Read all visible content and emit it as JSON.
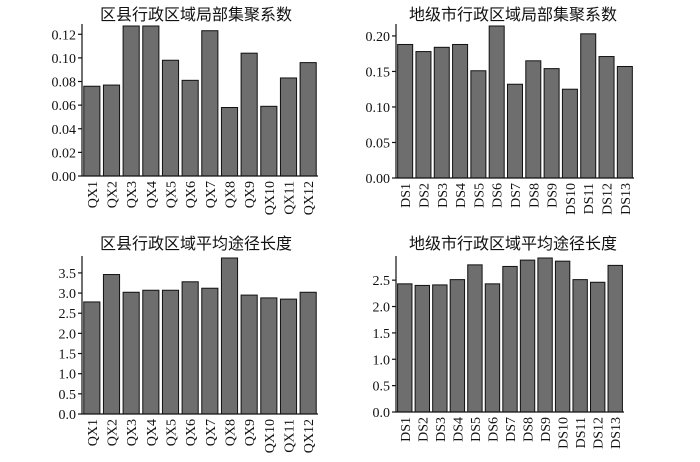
{
  "colors": {
    "bar": "#6e6e6e",
    "stroke": "#111111",
    "text": "#111111",
    "background": "#ffffff"
  },
  "chart_data": [
    {
      "type": "bar",
      "title": "区县行政区域局部集聚系数",
      "categories": [
        "QX1",
        "QX2",
        "QX3",
        "QX4",
        "QX5",
        "QX6",
        "QX7",
        "QX8",
        "QX9",
        "QX10",
        "QX11",
        "QX12"
      ],
      "values": [
        0.076,
        0.077,
        0.127,
        0.127,
        0.098,
        0.081,
        0.123,
        0.058,
        0.104,
        0.059,
        0.083,
        0.096
      ],
      "ylim": [
        0,
        0.127
      ],
      "yticks": [
        "0.00",
        "0.02",
        "0.04",
        "0.06",
        "0.08",
        "0.10",
        "0.12"
      ],
      "xlabel": "",
      "ylabel": ""
    },
    {
      "type": "bar",
      "title": "地级市行政区域局部集聚系数",
      "categories": [
        "DS1",
        "DS2",
        "DS3",
        "DS4",
        "DS5",
        "DS6",
        "DS7",
        "DS8",
        "DS9",
        "DS10",
        "DS11",
        "DS12",
        "DS13"
      ],
      "values": [
        0.188,
        0.178,
        0.184,
        0.188,
        0.151,
        0.214,
        0.132,
        0.165,
        0.154,
        0.125,
        0.203,
        0.171,
        0.157
      ],
      "ylim": [
        0,
        0.214
      ],
      "yticks": [
        "0.00",
        "0.05",
        "0.10",
        "0.15",
        "0.20"
      ],
      "xlabel": "",
      "ylabel": ""
    },
    {
      "type": "bar",
      "title": "区县行政区域平均途径长度",
      "categories": [
        "QX1",
        "QX2",
        "QX3",
        "QX4",
        "QX5",
        "QX6",
        "QX7",
        "QX8",
        "QX9",
        "QX10",
        "QX11",
        "QX12"
      ],
      "values": [
        2.78,
        3.46,
        3.02,
        3.07,
        3.07,
        3.28,
        3.12,
        3.87,
        2.95,
        2.88,
        2.85,
        3.02
      ],
      "ylim": [
        0,
        3.87
      ],
      "yticks": [
        "0.0",
        "0.5",
        "1.0",
        "1.5",
        "2.0",
        "2.5",
        "3.0",
        "3.5"
      ],
      "xlabel": "",
      "ylabel": ""
    },
    {
      "type": "bar",
      "title": "地级市行政区域平均途径长度",
      "categories": [
        "DS1",
        "DS2",
        "DS3",
        "DS4",
        "DS5",
        "DS6",
        "DS7",
        "DS8",
        "DS9",
        "DS10",
        "DS11",
        "DS12",
        "DS13"
      ],
      "values": [
        2.43,
        2.4,
        2.41,
        2.51,
        2.79,
        2.43,
        2.76,
        2.88,
        2.92,
        2.86,
        2.51,
        2.46,
        2.78
      ],
      "ylim": [
        0,
        2.92
      ],
      "yticks": [
        "0.0",
        "0.5",
        "1.0",
        "1.5",
        "2.0",
        "2.5"
      ],
      "xlabel": "",
      "ylabel": ""
    }
  ]
}
